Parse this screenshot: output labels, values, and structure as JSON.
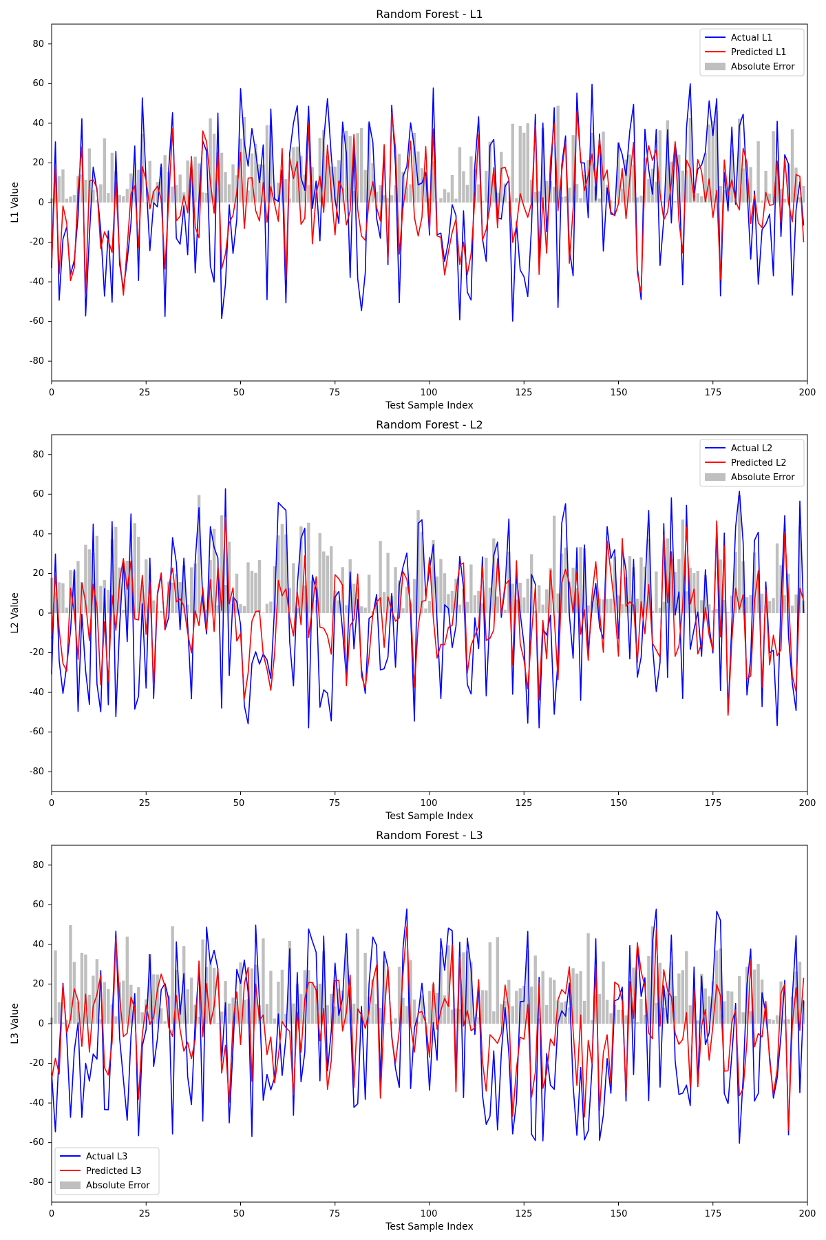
{
  "chart_data": [
    {
      "type": "line",
      "title": "Random Forest - L1",
      "xlabel": "Test Sample Index",
      "ylabel": "L1 Value",
      "xlim": [
        0,
        200
      ],
      "ylim": [
        -90,
        90
      ],
      "xticks": [
        "0",
        "25",
        "50",
        "75",
        "100",
        "125",
        "150",
        "175",
        "200"
      ],
      "yticks": [
        "-80",
        "-60",
        "-40",
        "-20",
        "0",
        "20",
        "40",
        "60",
        "80"
      ],
      "legend_position": "top-right",
      "seed": 11,
      "series": [
        {
          "name": "Actual L1",
          "color": "#0000ff",
          "kind": "line"
        },
        {
          "name": "Predicted L1",
          "color": "#ff0000",
          "kind": "line"
        },
        {
          "name": "Absolute Error",
          "color": "#bfbfbf",
          "kind": "bar"
        }
      ]
    },
    {
      "type": "line",
      "title": "Random Forest - L2",
      "xlabel": "Test Sample Index",
      "ylabel": "L2 Value",
      "xlim": [
        0,
        200
      ],
      "ylim": [
        -90,
        90
      ],
      "xticks": [
        "0",
        "25",
        "50",
        "75",
        "100",
        "125",
        "150",
        "175",
        "200"
      ],
      "yticks": [
        "-80",
        "-60",
        "-40",
        "-20",
        "0",
        "20",
        "40",
        "60",
        "80"
      ],
      "legend_position": "top-right",
      "seed": 23,
      "series": [
        {
          "name": "Actual L2",
          "color": "#0000ff",
          "kind": "line"
        },
        {
          "name": "Predicted L2",
          "color": "#ff0000",
          "kind": "line"
        },
        {
          "name": "Absolute Error",
          "color": "#bfbfbf",
          "kind": "bar"
        }
      ]
    },
    {
      "type": "line",
      "title": "Random Forest - L3",
      "xlabel": "Test Sample Index",
      "ylabel": "L3 Value",
      "xlim": [
        0,
        200
      ],
      "ylim": [
        -90,
        90
      ],
      "xticks": [
        "0",
        "25",
        "50",
        "75",
        "100",
        "125",
        "150",
        "175",
        "200"
      ],
      "yticks": [
        "-80",
        "-60",
        "-40",
        "-20",
        "0",
        "20",
        "40",
        "60",
        "80"
      ],
      "legend_position": "bottom-left",
      "seed": 37,
      "series": [
        {
          "name": "Actual L3",
          "color": "#0000ff",
          "kind": "line"
        },
        {
          "name": "Predicted L3",
          "color": "#ff0000",
          "kind": "line"
        },
        {
          "name": "Absolute Error",
          "color": "#bfbfbf",
          "kind": "bar"
        }
      ]
    }
  ]
}
